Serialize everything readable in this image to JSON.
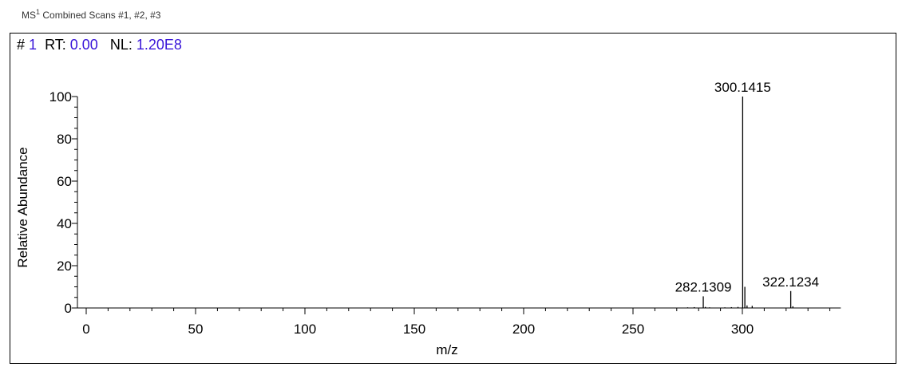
{
  "header": {
    "ms_label": "MS",
    "ms_level": "1",
    "title": "Combined Scans #1, #2, #3"
  },
  "scan_info": {
    "scan_label": "#",
    "scan_number": "1",
    "rt_label": "RT:",
    "rt_value": "0.00",
    "nl_label": "NL:",
    "nl_value": "1.20E8",
    "value_color": "#3a16d9"
  },
  "chart_data": {
    "type": "bar",
    "xlabel": "m/z",
    "ylabel": "Relative Abundance",
    "xlim": [
      -5,
      345
    ],
    "ylim": [
      0,
      100
    ],
    "xticks": [
      0,
      50,
      100,
      150,
      200,
      250,
      300
    ],
    "yticks": [
      0,
      20,
      40,
      60,
      80,
      100
    ],
    "grid": false,
    "peaks": [
      {
        "mz": 300.1415,
        "intensity": 100,
        "label": "300.1415"
      },
      {
        "mz": 322.1234,
        "intensity": 8,
        "label": "322.1234"
      },
      {
        "mz": 282.1309,
        "intensity": 5.5,
        "label": "282.1309"
      },
      {
        "mz": 301.14,
        "intensity": 10
      },
      {
        "mz": 302.14,
        "intensity": 1.2
      },
      {
        "mz": 304.5,
        "intensity": 1
      },
      {
        "mz": 323.1,
        "intensity": 0.8
      },
      {
        "mz": 283.1,
        "intensity": 0.5
      },
      {
        "mz": 275,
        "intensity": 0.3
      },
      {
        "mz": 278,
        "intensity": 0.4
      },
      {
        "mz": 285,
        "intensity": 0.3
      },
      {
        "mz": 292,
        "intensity": 0.3
      },
      {
        "mz": 295,
        "intensity": 0.4
      },
      {
        "mz": 298,
        "intensity": 0.5
      }
    ]
  }
}
